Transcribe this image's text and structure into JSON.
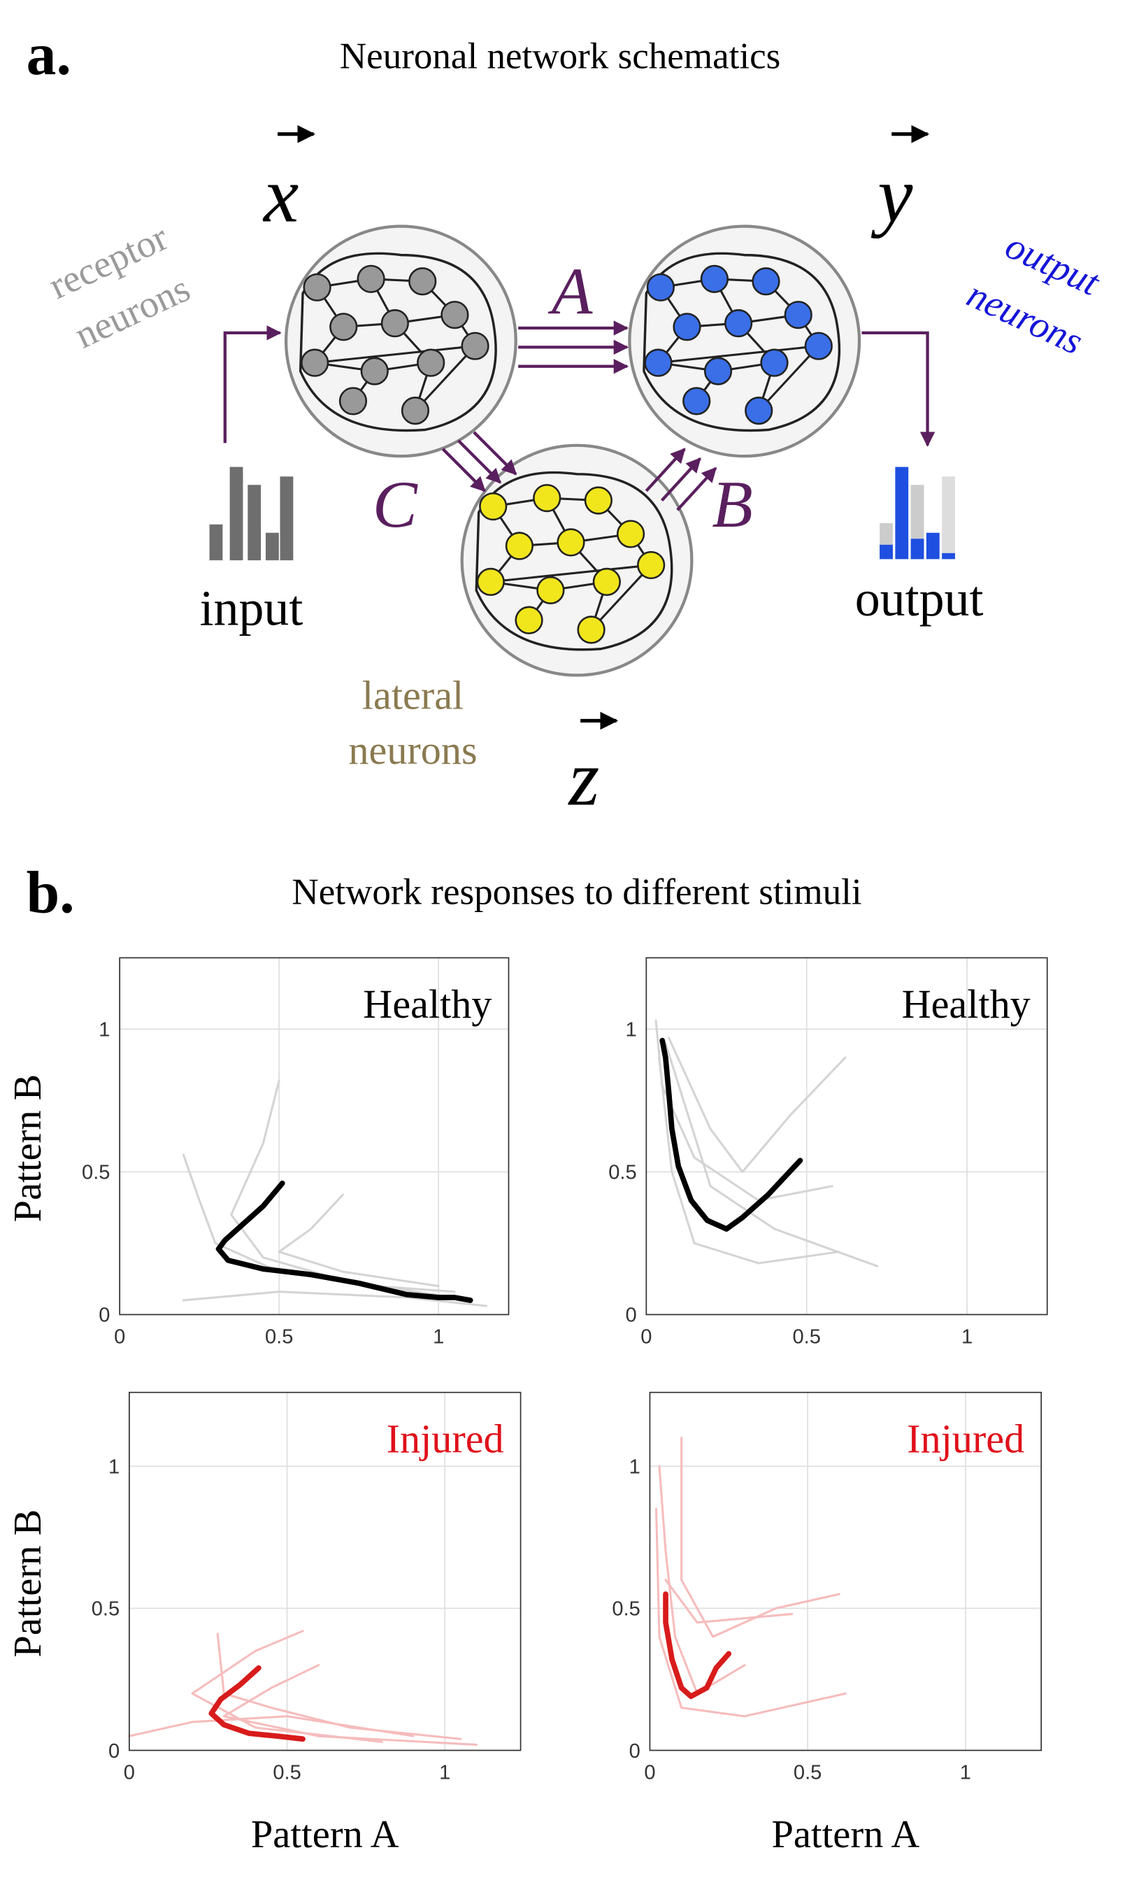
{
  "figure": {
    "panel_a": {
      "label": "a.",
      "title": "Neuronal network schematics",
      "vec_x": "x",
      "vec_y": "y",
      "vec_z": "z",
      "receptor": [
        "receptor",
        "neurons"
      ],
      "output_neurons": [
        "output",
        "neurons"
      ],
      "lateral": [
        "lateral",
        "neurons"
      ],
      "conn_a": "A",
      "conn_b": "B",
      "conn_c": "C",
      "input": "input",
      "output": "output"
    },
    "panel_b": {
      "label": "b.",
      "title": "Network responses to different stimuli"
    }
  },
  "chart_data": [
    {
      "type": "line",
      "annotation": "Healthy",
      "annotation_color": "#000000",
      "ylabel": "Pattern B",
      "xlim": [
        0,
        1.22
      ],
      "ylim": [
        0,
        1.25
      ],
      "xticks": [
        0,
        0.5,
        1
      ],
      "yticks": [
        0,
        0.5,
        1
      ],
      "grid": true,
      "series": [
        {
          "color": "#d4d4d4",
          "x": [
            0.2,
            0.25,
            0.3,
            0.5,
            0.8,
            1.05
          ],
          "values": [
            0.56,
            0.4,
            0.25,
            0.15,
            0.1,
            0.08
          ]
        },
        {
          "color": "#d4d4d4",
          "x": [
            0.5,
            0.45,
            0.35,
            0.45,
            0.7,
            1.1
          ],
          "values": [
            0.82,
            0.6,
            0.35,
            0.2,
            0.12,
            0.05
          ]
        },
        {
          "color": "#d4d4d4",
          "x": [
            0.7,
            0.6,
            0.5,
            0.7,
            1.0
          ],
          "values": [
            0.42,
            0.3,
            0.22,
            0.15,
            0.1
          ]
        },
        {
          "color": "#d4d4d4",
          "x": [
            0.2,
            0.5,
            0.9,
            1.15
          ],
          "values": [
            0.05,
            0.08,
            0.06,
            0.03
          ]
        },
        {
          "color": "#000000",
          "x": [
            0.51,
            0.45,
            0.38,
            0.33,
            0.31,
            0.34,
            0.45,
            0.6,
            0.75,
            0.9,
            1.0,
            1.05,
            1.1
          ],
          "values": [
            0.46,
            0.38,
            0.31,
            0.26,
            0.23,
            0.19,
            0.16,
            0.14,
            0.11,
            0.07,
            0.06,
            0.06,
            0.05
          ]
        }
      ]
    },
    {
      "type": "line",
      "annotation": "Healthy",
      "annotation_color": "#000000",
      "xlim": [
        0,
        1.25
      ],
      "ylim": [
        0,
        1.25
      ],
      "xticks": [
        0,
        0.5,
        1
      ],
      "yticks": [
        0,
        0.5,
        1
      ],
      "grid": true,
      "series": [
        {
          "color": "#d4d4d4",
          "x": [
            0.03,
            0.05,
            0.15,
            0.35,
            0.58
          ],
          "values": [
            1.03,
            0.8,
            0.55,
            0.4,
            0.45
          ]
        },
        {
          "color": "#d4d4d4",
          "x": [
            0.07,
            0.2,
            0.3,
            0.45,
            0.62
          ],
          "values": [
            0.97,
            0.65,
            0.5,
            0.7,
            0.9
          ]
        },
        {
          "color": "#d4d4d4",
          "x": [
            0.04,
            0.08,
            0.15,
            0.35,
            0.6
          ],
          "values": [
            0.9,
            0.5,
            0.25,
            0.18,
            0.22
          ]
        },
        {
          "color": "#d4d4d4",
          "x": [
            0.06,
            0.2,
            0.4,
            0.72
          ],
          "values": [
            0.95,
            0.45,
            0.3,
            0.17
          ]
        },
        {
          "color": "#000000",
          "x": [
            0.05,
            0.06,
            0.07,
            0.08,
            0.1,
            0.14,
            0.19,
            0.25,
            0.3,
            0.38,
            0.48
          ],
          "values": [
            0.96,
            0.9,
            0.78,
            0.65,
            0.52,
            0.4,
            0.33,
            0.3,
            0.34,
            0.42,
            0.54
          ]
        }
      ]
    },
    {
      "type": "line",
      "annotation": "Injured",
      "annotation_color": "#e0101a",
      "ylabel": "Pattern B",
      "xlabel": "Pattern A",
      "xlim": [
        0,
        1.24
      ],
      "ylim": [
        0,
        1.26
      ],
      "xticks": [
        0,
        0.5,
        1
      ],
      "yticks": [
        0,
        0.5,
        1
      ],
      "grid": true,
      "series": [
        {
          "color": "#f6bcbc",
          "x": [
            0.28,
            0.3,
            0.45,
            0.7,
            1.05
          ],
          "values": [
            0.41,
            0.2,
            0.15,
            0.08,
            0.04
          ]
        },
        {
          "color": "#f6bcbc",
          "x": [
            0.55,
            0.4,
            0.2,
            0.4,
            0.8
          ],
          "values": [
            0.42,
            0.35,
            0.2,
            0.08,
            0.03
          ]
        },
        {
          "color": "#f6bcbc",
          "x": [
            0,
            0.2,
            0.5,
            0.9
          ],
          "values": [
            0.05,
            0.1,
            0.12,
            0.05
          ]
        },
        {
          "color": "#f6bcbc",
          "x": [
            0.6,
            0.45,
            0.3,
            0.6,
            1.1
          ],
          "values": [
            0.3,
            0.22,
            0.12,
            0.05,
            0.02
          ]
        },
        {
          "color": "#d81b1b",
          "x": [
            0.41,
            0.35,
            0.29,
            0.26,
            0.3,
            0.38,
            0.47,
            0.55
          ],
          "values": [
            0.29,
            0.23,
            0.18,
            0.13,
            0.09,
            0.06,
            0.05,
            0.04
          ]
        }
      ]
    },
    {
      "type": "line",
      "annotation": "Injured",
      "annotation_color": "#e0101a",
      "xlabel": "Pattern A",
      "xlim": [
        0,
        1.24
      ],
      "ylim": [
        0,
        1.26
      ],
      "xticks": [
        0,
        0.5,
        1
      ],
      "yticks": [
        0,
        0.5,
        1
      ],
      "grid": true,
      "series": [
        {
          "color": "#f6bcbc",
          "x": [
            0.03,
            0.05,
            0.08,
            0.15,
            0.3
          ],
          "values": [
            1.0,
            0.7,
            0.4,
            0.2,
            0.3
          ]
        },
        {
          "color": "#f6bcbc",
          "x": [
            0.1,
            0.1,
            0.2,
            0.4,
            0.6
          ],
          "values": [
            1.1,
            0.6,
            0.4,
            0.5,
            0.55
          ]
        },
        {
          "color": "#f6bcbc",
          "x": [
            0.02,
            0.03,
            0.1,
            0.3,
            0.62
          ],
          "values": [
            0.85,
            0.4,
            0.15,
            0.12,
            0.2
          ]
        },
        {
          "color": "#f6bcbc",
          "x": [
            0.05,
            0.15,
            0.45
          ],
          "values": [
            0.6,
            0.45,
            0.48
          ]
        },
        {
          "color": "#d81b1b",
          "x": [
            0.05,
            0.05,
            0.07,
            0.1,
            0.13,
            0.18,
            0.21,
            0.25
          ],
          "values": [
            0.55,
            0.45,
            0.32,
            0.22,
            0.19,
            0.22,
            0.29,
            0.34
          ]
        }
      ]
    }
  ]
}
